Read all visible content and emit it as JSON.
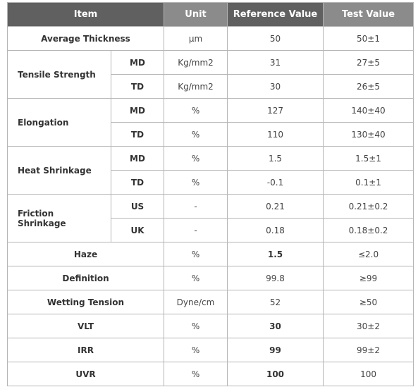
{
  "header": [
    "Item",
    "Unit",
    "Reference Value",
    "Test Value"
  ],
  "rows": [
    {
      "item": "Average Thickness",
      "unit": "μm",
      "reference": "50",
      "test": "50±1"
    },
    {
      "item": "Tensile Strength",
      "subrows": [
        {
          "sub": "MD",
          "unit": "Kg/mm2",
          "reference": "31",
          "test": "27±5"
        },
        {
          "sub": "TD",
          "unit": "Kg/mm2",
          "reference": "30",
          "test": "26±5"
        }
      ]
    },
    {
      "item": "Elongation",
      "subrows": [
        {
          "sub": "MD",
          "unit": "%",
          "reference": "127",
          "test": "140±40"
        },
        {
          "sub": "TD",
          "unit": "%",
          "reference": "110",
          "test": "130±40"
        }
      ]
    },
    {
      "item": "Heat Shrinkage",
      "subrows": [
        {
          "sub": "MD",
          "unit": "%",
          "reference": "1.5",
          "test": "1.5±1"
        },
        {
          "sub": "TD",
          "unit": "%",
          "reference": "-0.1",
          "test": "0.1±1"
        }
      ]
    },
    {
      "item": "Friction\nShrinkage",
      "subrows": [
        {
          "sub": "US",
          "unit": "-",
          "reference": "0.21",
          "test": "0.21±0.2"
        },
        {
          "sub": "UK",
          "unit": "-",
          "reference": "0.18",
          "test": "0.18±0.2"
        }
      ]
    },
    {
      "item": "Haze",
      "unit": "%",
      "reference": "1.5",
      "test": "≤2.0",
      "emphasis": true
    },
    {
      "item": "Definition",
      "unit": "%",
      "reference": "99.8",
      "test": "≥99"
    },
    {
      "item": "Wetting Tension",
      "unit": "Dyne/cm",
      "reference": "52",
      "test": "≥50"
    },
    {
      "item": "VLT",
      "unit": "%",
      "reference": "30",
      "test": "30±2",
      "emphasis": true
    },
    {
      "item": "IRR",
      "unit": "%",
      "reference": "99",
      "test": "99±2",
      "emphasis": true
    },
    {
      "item": "UVR",
      "unit": "%",
      "reference": "100",
      "test": "100",
      "emphasis": true
    }
  ]
}
